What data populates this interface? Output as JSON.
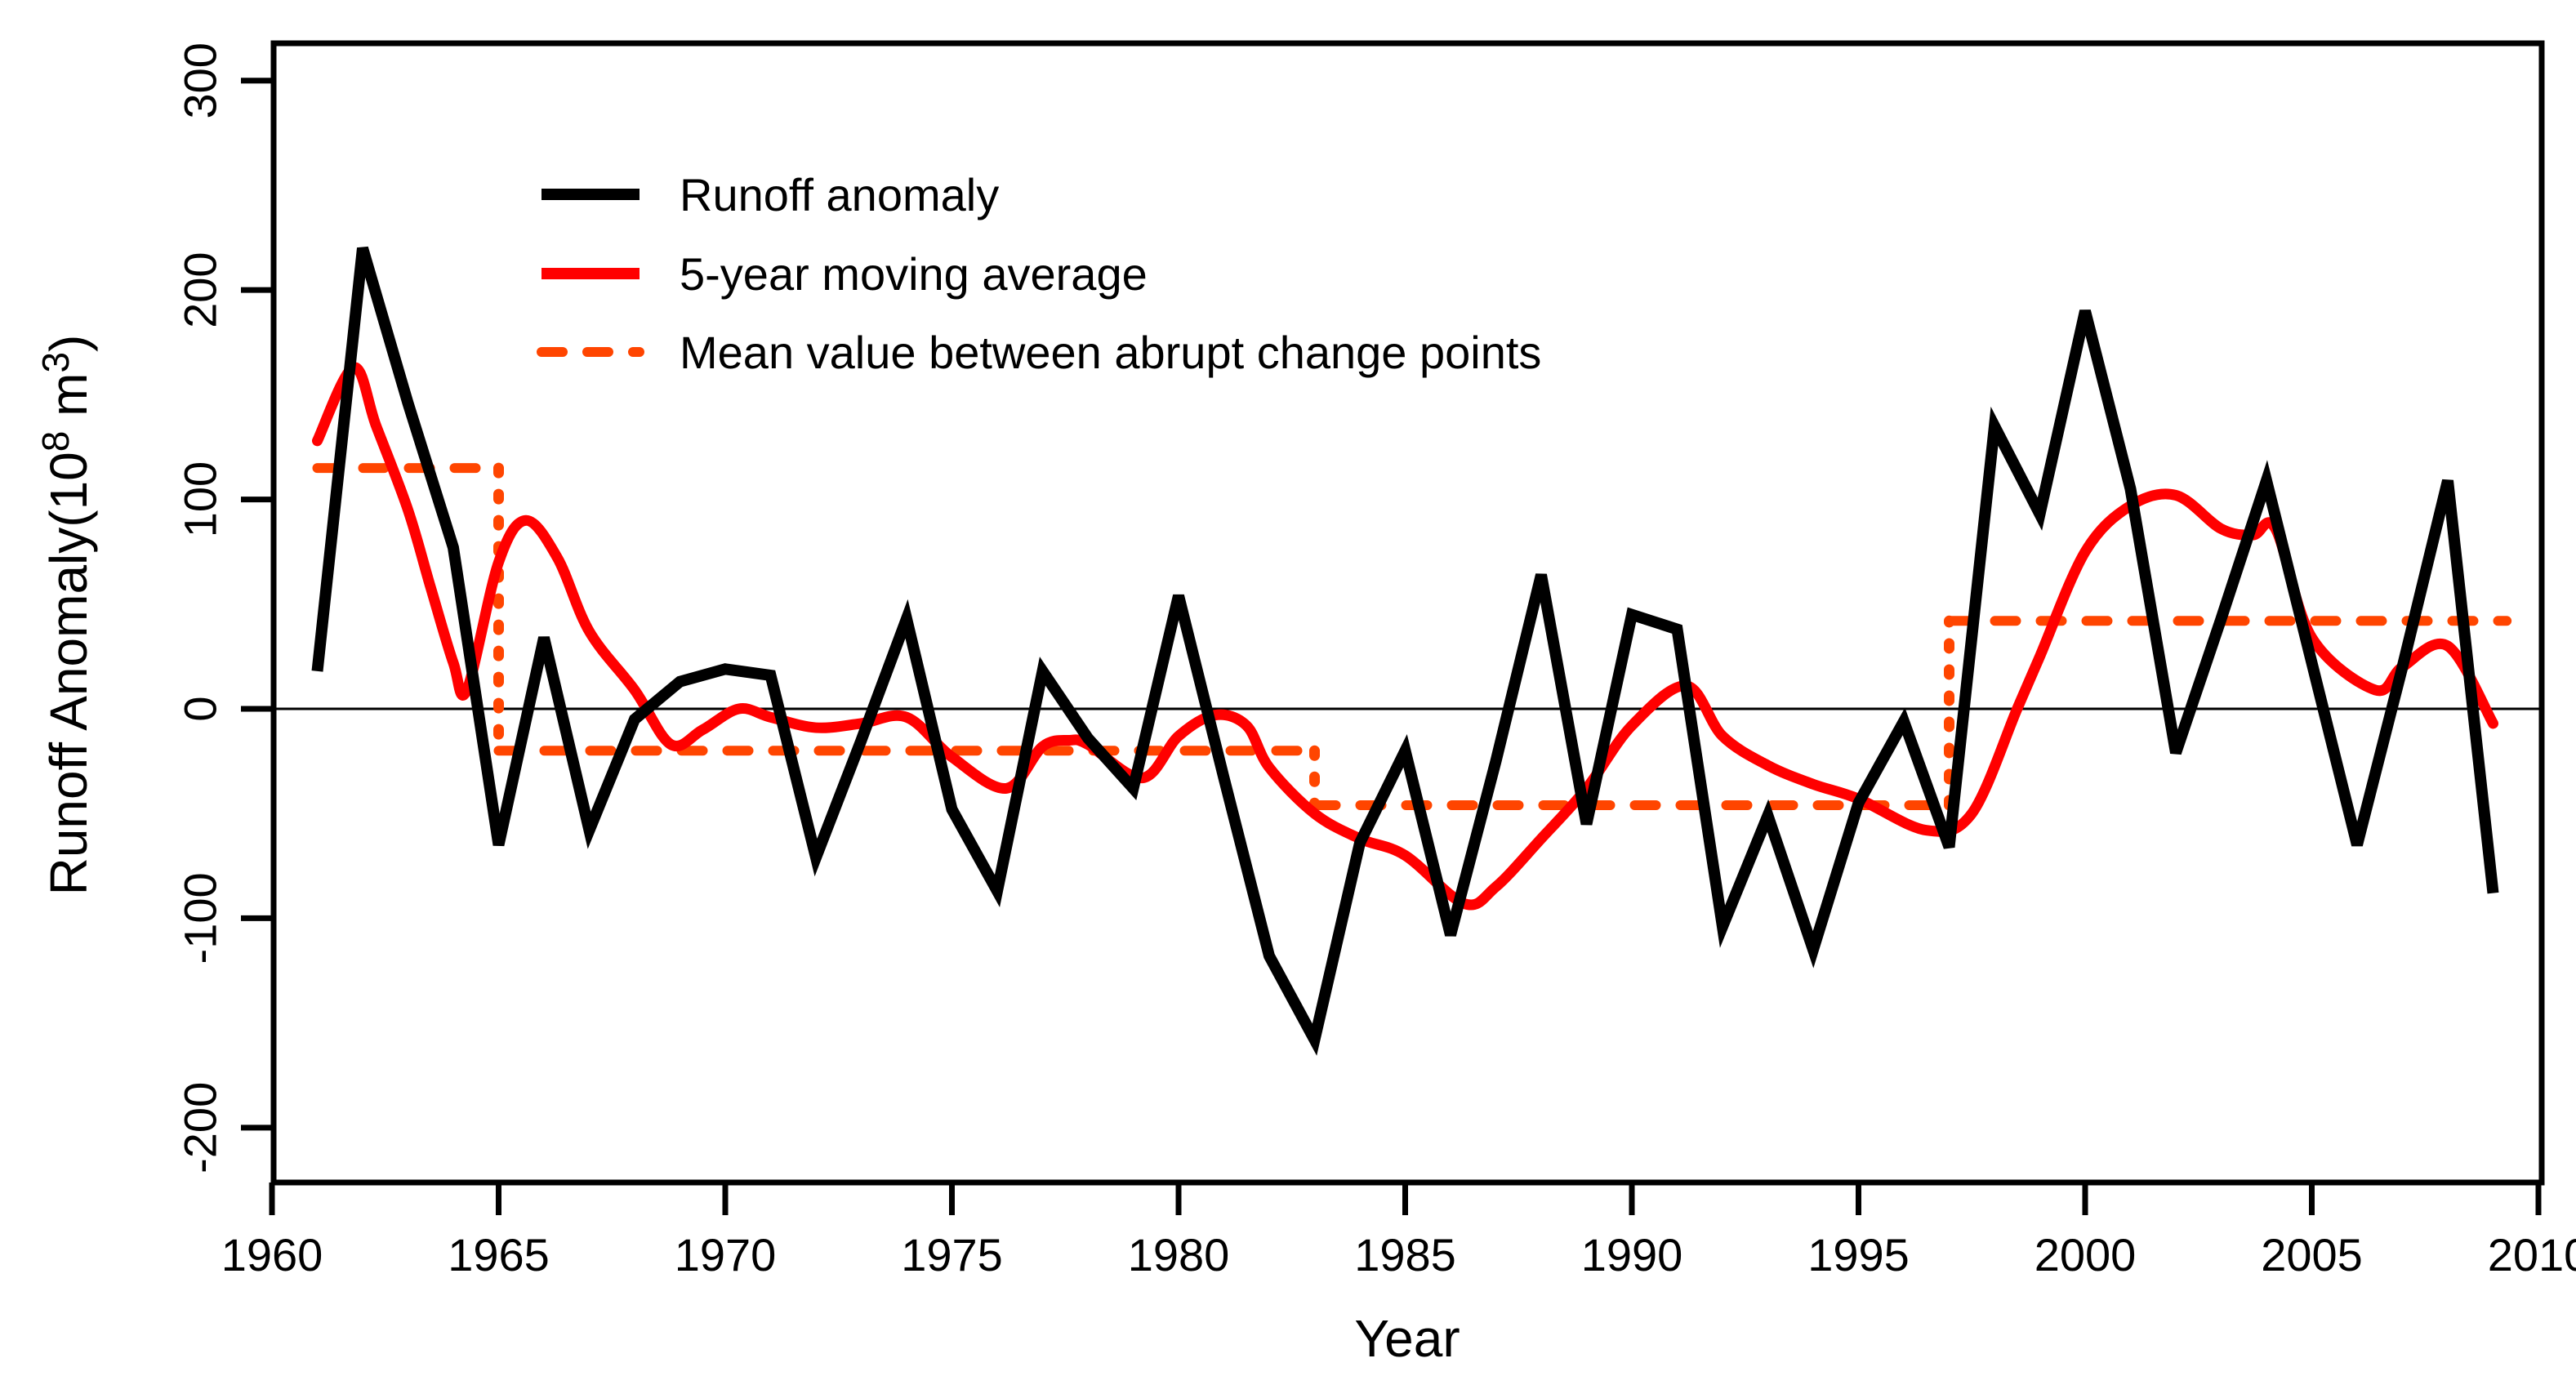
{
  "chart_data": {
    "type": "line",
    "title": "",
    "xlabel": "Year",
    "ylabel": "Runoff Anomaly(10^8 m^3)",
    "ylabel_parts": [
      "Runoff Anomaly(10",
      "8",
      " m",
      "3",
      ")"
    ],
    "axes": {
      "x": {
        "range": [
          1959.95,
          2010.1
        ],
        "ticks": [
          1960,
          1965,
          1970,
          1975,
          1980,
          1985,
          1990,
          1995,
          2000,
          2005,
          2010
        ]
      },
      "y": {
        "range": [
          -226,
          318
        ],
        "ticks": [
          300,
          200,
          100,
          0,
          -100,
          -200
        ]
      }
    },
    "grid": false,
    "zero_line": true,
    "legend_position": "top-left-inside",
    "colors": {
      "runoff": "#000000",
      "moving_average": "#ff0000",
      "mean_steps": "#ff4500"
    },
    "legend": {
      "items": [
        {
          "label": "Runoff anomaly",
          "style": "solid",
          "color": "#000000"
        },
        {
          "label": "5-year moving average",
          "style": "solid",
          "color": "#ff0000"
        },
        {
          "label": "Mean value between abrupt change points",
          "style": "dashed",
          "color": "#ff4500"
        }
      ]
    },
    "series": [
      {
        "name": "Runoff anomaly",
        "type": "polyline",
        "color": "#000000",
        "years": [
          1961,
          1962,
          1963,
          1964,
          1965,
          1966,
          1967,
          1968,
          1969,
          1970,
          1971,
          1972,
          1973,
          1974,
          1975,
          1976,
          1977,
          1978,
          1979,
          1980,
          1981,
          1982,
          1983,
          1984,
          1985,
          1986,
          1987,
          1988,
          1989,
          1990,
          1991,
          1992,
          1993,
          1994,
          1995,
          1996,
          1997,
          1998,
          1999,
          2000,
          2001,
          2002,
          2003,
          2004,
          2005,
          2006,
          2007,
          2008,
          2009
        ],
        "values": [
          18,
          220,
          146,
          77,
          -65,
          34,
          -58,
          -5,
          13,
          19,
          16,
          -71,
          -15,
          43,
          -48,
          -87,
          18,
          -14,
          -38,
          54,
          -33,
          -118,
          -158,
          -64,
          -20,
          -108,
          -25,
          64,
          -55,
          45,
          38,
          -104,
          -51,
          -115,
          -45,
          -6,
          -66,
          135,
          93,
          190,
          105,
          -21,
          43,
          109,
          22,
          -65,
          20,
          109,
          -88
        ]
      },
      {
        "name": "5-year moving average",
        "type": "smooth",
        "color": "#ff0000",
        "points": [
          [
            1961,
            128
          ],
          [
            1961.8,
            163
          ],
          [
            1962.3,
            135
          ],
          [
            1963,
            95
          ],
          [
            1963.5,
            58
          ],
          [
            1964,
            22
          ],
          [
            1964.3,
            9
          ],
          [
            1965,
            70
          ],
          [
            1965.6,
            90
          ],
          [
            1966.3,
            72
          ],
          [
            1967,
            37
          ],
          [
            1968,
            9
          ],
          [
            1968.8,
            -17
          ],
          [
            1969.5,
            -10
          ],
          [
            1970.3,
            0
          ],
          [
            1971,
            -4
          ],
          [
            1972,
            -9
          ],
          [
            1973,
            -7
          ],
          [
            1974,
            -4
          ],
          [
            1975,
            -23
          ],
          [
            1976.2,
            -38
          ],
          [
            1977,
            -18
          ],
          [
            1977.6,
            -15
          ],
          [
            1978,
            -17
          ],
          [
            1979.2,
            -33
          ],
          [
            1980,
            -13
          ],
          [
            1980.8,
            -3
          ],
          [
            1981.5,
            -8
          ],
          [
            1982,
            -28
          ],
          [
            1983,
            -50
          ],
          [
            1984,
            -62
          ],
          [
            1985,
            -70
          ],
          [
            1986.3,
            -93
          ],
          [
            1987,
            -85
          ],
          [
            1988,
            -62
          ],
          [
            1989,
            -38
          ],
          [
            1990,
            -8
          ],
          [
            1991.2,
            11
          ],
          [
            1992,
            -13
          ],
          [
            1993,
            -27
          ],
          [
            1994,
            -36
          ],
          [
            1995,
            -43
          ],
          [
            1996.5,
            -58
          ],
          [
            1997.5,
            -50
          ],
          [
            1998.5,
            0
          ],
          [
            1999,
            25
          ],
          [
            2000,
            75
          ],
          [
            2001,
            97
          ],
          [
            2002,
            102
          ],
          [
            2003,
            86
          ],
          [
            2003.7,
            83
          ],
          [
            2004.2,
            86
          ],
          [
            2005,
            34
          ],
          [
            2006.4,
            9
          ],
          [
            2007,
            20
          ],
          [
            2008,
            30
          ],
          [
            2009,
            -7
          ]
        ]
      },
      {
        "name": "Mean value between abrupt change points",
        "type": "steps",
        "color": "#ff4500",
        "segments": [
          {
            "from": 1961,
            "to": 1965,
            "value": 115
          },
          {
            "from": 1965,
            "to": 1983,
            "value": -20
          },
          {
            "from": 1983,
            "to": 1997,
            "value": -46
          },
          {
            "from": 1997,
            "to": 2009.3,
            "value": 42
          }
        ],
        "change_points": [
          1965,
          1983,
          1997
        ]
      }
    ]
  }
}
